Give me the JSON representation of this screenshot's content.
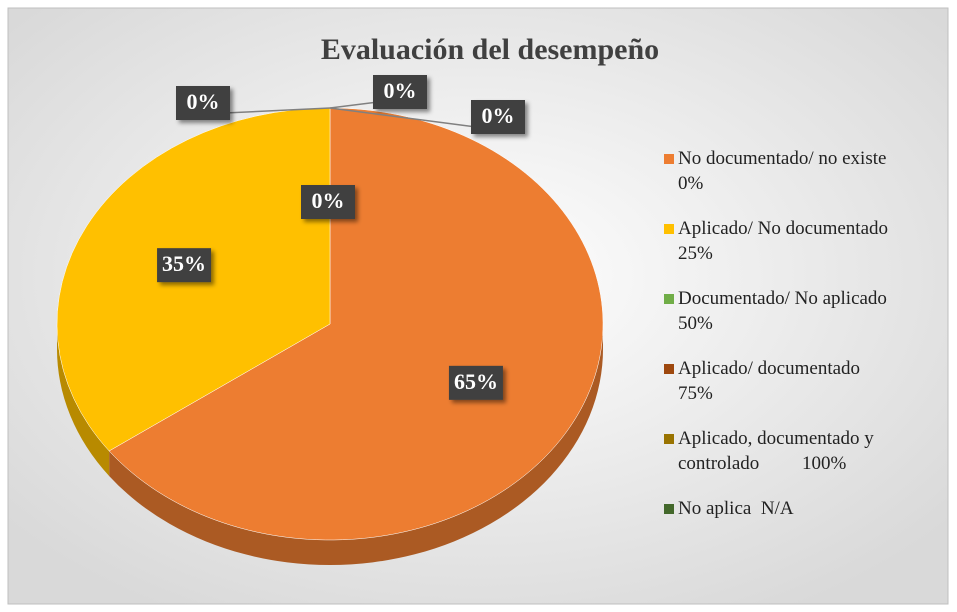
{
  "chart_data": {
    "type": "pie",
    "title": "Evaluación del desempeño",
    "categories": [
      "No documentado/ no existe\n0%",
      "Aplicado/ No documentado\n25%",
      "Documentado/ No aplicado\n50%",
      "Aplicado/ documentado\n75%",
      "Aplicado, documentado y\ncontrolado         100%",
      "No aplica  N/A"
    ],
    "values": [
      65,
      35,
      0,
      0,
      0,
      0
    ],
    "value_labels": [
      "65%",
      "35%",
      "0%",
      "0%",
      "0%",
      "0%"
    ],
    "colors": [
      "#ed7d31",
      "#ffc000",
      "#70ad47",
      "#9e480e",
      "#997300",
      "#43682b"
    ],
    "legend": "right"
  }
}
